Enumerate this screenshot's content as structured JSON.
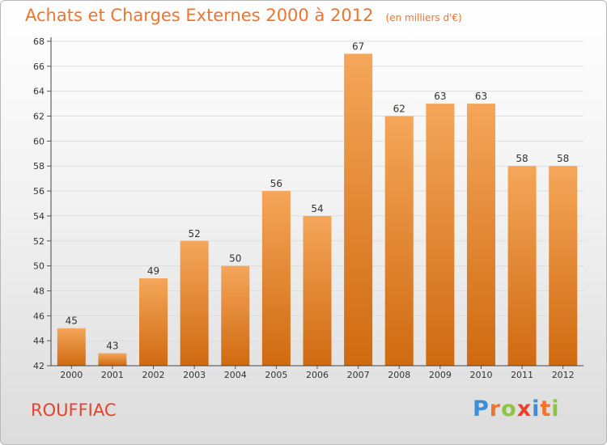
{
  "header": {
    "title": "Achats et Charges Externes 2000 à 2012",
    "unit": "(en milliers d'€)"
  },
  "footer": {
    "place": "ROUFFIAC",
    "brand": [
      "P",
      "r",
      "o",
      "x",
      "i",
      "t",
      "i"
    ],
    "brand_colors": [
      "#3a8fd8",
      "#f0742e",
      "#8cc63f",
      "#e8422c",
      "#3a8fd8",
      "#f0742e",
      "#8cc63f"
    ]
  },
  "colors": {
    "bar_top": "#f5a65a",
    "bar_bottom": "#cf6a10",
    "grid": "#dddddd"
  },
  "chart_data": {
    "type": "bar",
    "categories": [
      "2000",
      "2001",
      "2002",
      "2003",
      "2004",
      "2005",
      "2006",
      "2007",
      "2008",
      "2009",
      "2010",
      "2011",
      "2012"
    ],
    "values": [
      45,
      43,
      49,
      52,
      50,
      56,
      54,
      67,
      62,
      63,
      63,
      58,
      58
    ],
    "yticks": [
      42,
      44,
      46,
      48,
      50,
      52,
      54,
      56,
      58,
      60,
      62,
      64,
      66,
      68
    ],
    "ylim": [
      42,
      68
    ],
    "grid": true,
    "title": "Achats et Charges Externes 2000 à 2012",
    "xlabel": "",
    "ylabel": ""
  }
}
